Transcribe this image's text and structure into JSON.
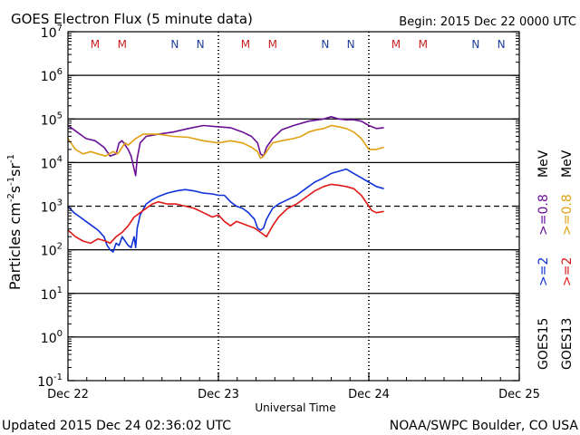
{
  "header": {
    "title": "GOES Electron Flux (5 minute data)",
    "begin": "Begin: 2015 Dec 22 0000 UTC"
  },
  "footer": {
    "updated": "Updated 2015 Dec 24 02:36:02 UTC",
    "credit": "NOAA/SWPC Boulder, CO USA"
  },
  "colors": {
    "goes15_2mev": "#1032d8",
    "goes13_2mev": "#e01818",
    "goes15_08mev": "#6a0f96",
    "goes13_08mev": "#e0a010",
    "marker_m": "#cc2222",
    "marker_n": "#1e3fa0"
  },
  "chart_data": {
    "type": "line",
    "title": "GOES Electron Flux (5 minute data)",
    "xlabel": "Universal Time",
    "ylabel_base": "Particles cm",
    "ylabel_units": [
      {
        "text": "Particles cm",
        "sup": "-2"
      },
      {
        "text": "s",
        "sup": "-1"
      },
      {
        "text": "sr",
        "sup": "-1"
      }
    ],
    "x_unit": "days since 2015 Dec 22 0000 UTC",
    "xlim": [
      0,
      3
    ],
    "ylim_log10": [
      -1,
      7
    ],
    "yscale": "log",
    "x_ticks": [
      {
        "x": 0,
        "label": "Dec 22"
      },
      {
        "x": 1,
        "label": "Dec 23"
      },
      {
        "x": 2,
        "label": "Dec 24"
      },
      {
        "x": 3,
        "label": "Dec 25"
      }
    ],
    "y_ticks": [
      {
        "exp": 7,
        "base": "10",
        "sup": "7"
      },
      {
        "exp": 6,
        "base": "10",
        "sup": "6"
      },
      {
        "exp": 5,
        "base": "10",
        "sup": "5"
      },
      {
        "exp": 4,
        "base": "10",
        "sup": "4"
      },
      {
        "exp": 3,
        "base": "10",
        "sup": "3"
      },
      {
        "exp": 2,
        "base": "10",
        "sup": "2"
      },
      {
        "exp": 1,
        "base": "10",
        "sup": "1"
      },
      {
        "exp": 0,
        "base": "10",
        "sup": "0"
      },
      {
        "exp": -1,
        "base": "10",
        "sup": "-1"
      }
    ],
    "solid_gridlines_exp": [
      6,
      5,
      4,
      2,
      1,
      0
    ],
    "threshold_exp": 3,
    "markers": [
      {
        "x": 0.18,
        "label": "M",
        "kind": "m"
      },
      {
        "x": 0.36,
        "label": "M",
        "kind": "m"
      },
      {
        "x": 0.71,
        "label": "N",
        "kind": "n"
      },
      {
        "x": 0.88,
        "label": "N",
        "kind": "n"
      },
      {
        "x": 1.18,
        "label": "M",
        "kind": "m"
      },
      {
        "x": 1.36,
        "label": "M",
        "kind": "m"
      },
      {
        "x": 1.71,
        "label": "N",
        "kind": "n"
      },
      {
        "x": 1.88,
        "label": "N",
        "kind": "n"
      },
      {
        "x": 2.18,
        "label": "M",
        "kind": "m"
      },
      {
        "x": 2.36,
        "label": "M",
        "kind": "m"
      },
      {
        "x": 2.71,
        "label": "N",
        "kind": "n"
      },
      {
        "x": 2.88,
        "label": "N",
        "kind": "n"
      }
    ],
    "legend": {
      "position": "right",
      "groups": [
        {
          "satellite": "GOES15",
          "entries": [
            {
              "label": ">=0.8 MeV",
              "color_key": "goes15_08mev"
            },
            {
              "label": ">=2 MeV",
              "color_key": "goes15_2mev"
            }
          ]
        },
        {
          "satellite": "GOES13",
          "entries": [
            {
              "label": ">=0.8 MeV",
              "color_key": "goes13_08mev"
            },
            {
              "label": ">=2",
              "color_key": "goes13_2mev"
            }
          ]
        }
      ],
      "legend_text": {
        "goes15_label": "GOES15",
        "goes13_label": "GOES13",
        "goes15_2": ">=2",
        "goes13_2": ">=2",
        "goes15_08": ">=0.8",
        "goes13_08": ">=0.8",
        "mev": "MeV"
      }
    },
    "series": [
      {
        "name": "GOES15 >=0.8 MeV",
        "color_key": "goes15_08mev",
        "x": [
          0.0,
          0.06,
          0.12,
          0.18,
          0.24,
          0.28,
          0.32,
          0.34,
          0.36,
          0.38,
          0.4,
          0.42,
          0.44,
          0.45,
          0.46,
          0.48,
          0.52,
          0.6,
          0.7,
          0.8,
          0.9,
          1.0,
          1.08,
          1.16,
          1.22,
          1.26,
          1.28,
          1.3,
          1.32,
          1.36,
          1.42,
          1.5,
          1.6,
          1.7,
          1.75,
          1.8,
          1.85,
          1.9,
          1.95,
          2.0,
          2.05,
          2.1
        ],
        "y_log10": [
          4.85,
          4.7,
          4.55,
          4.5,
          4.35,
          4.15,
          4.2,
          4.45,
          4.5,
          4.4,
          4.3,
          4.15,
          3.85,
          3.7,
          4.1,
          4.45,
          4.6,
          4.65,
          4.7,
          4.78,
          4.85,
          4.82,
          4.8,
          4.7,
          4.6,
          4.45,
          4.2,
          4.15,
          4.35,
          4.55,
          4.75,
          4.85,
          4.95,
          5.0,
          5.05,
          5.0,
          4.98,
          4.98,
          4.95,
          4.85,
          4.78,
          4.8
        ]
      },
      {
        "name": "GOES13 >=0.8 MeV",
        "color_key": "goes13_08mev",
        "x": [
          0.0,
          0.05,
          0.1,
          0.15,
          0.2,
          0.25,
          0.3,
          0.33,
          0.36,
          0.38,
          0.4,
          0.45,
          0.5,
          0.6,
          0.7,
          0.8,
          0.9,
          1.0,
          1.08,
          1.16,
          1.22,
          1.26,
          1.28,
          1.3,
          1.32,
          1.36,
          1.42,
          1.5,
          1.55,
          1.6,
          1.65,
          1.7,
          1.75,
          1.8,
          1.85,
          1.9,
          1.95,
          1.98,
          2.0,
          2.05,
          2.1
        ],
        "y_log10": [
          4.55,
          4.3,
          4.2,
          4.25,
          4.2,
          4.15,
          4.25,
          4.2,
          4.35,
          4.45,
          4.4,
          4.55,
          4.65,
          4.65,
          4.6,
          4.58,
          4.5,
          4.45,
          4.5,
          4.45,
          4.35,
          4.25,
          4.1,
          4.15,
          4.25,
          4.45,
          4.5,
          4.55,
          4.6,
          4.7,
          4.75,
          4.78,
          4.85,
          4.82,
          4.78,
          4.7,
          4.55,
          4.4,
          4.3,
          4.3,
          4.35
        ]
      },
      {
        "name": "GOES15 >=2 MeV",
        "color_key": "goes15_2mev",
        "x": [
          0.0,
          0.04,
          0.08,
          0.12,
          0.16,
          0.2,
          0.24,
          0.26,
          0.28,
          0.3,
          0.32,
          0.34,
          0.36,
          0.38,
          0.4,
          0.42,
          0.44,
          0.45,
          0.46,
          0.48,
          0.52,
          0.56,
          0.6,
          0.66,
          0.72,
          0.78,
          0.84,
          0.9,
          0.96,
          1.0,
          1.04,
          1.08,
          1.12,
          1.16,
          1.2,
          1.24,
          1.26,
          1.28,
          1.3,
          1.32,
          1.36,
          1.4,
          1.46,
          1.52,
          1.58,
          1.64,
          1.7,
          1.75,
          1.8,
          1.85,
          1.9,
          1.95,
          2.0,
          2.05,
          2.1
        ],
        "y_log10": [
          3.0,
          2.85,
          2.75,
          2.65,
          2.55,
          2.45,
          2.3,
          2.1,
          2.0,
          1.95,
          2.15,
          2.1,
          2.3,
          2.2,
          2.1,
          2.05,
          2.3,
          2.05,
          2.5,
          2.8,
          3.05,
          3.15,
          3.22,
          3.3,
          3.35,
          3.38,
          3.35,
          3.3,
          3.28,
          3.25,
          3.25,
          3.1,
          3.0,
          2.95,
          2.85,
          2.7,
          2.5,
          2.45,
          2.5,
          2.7,
          2.95,
          3.05,
          3.15,
          3.25,
          3.4,
          3.55,
          3.65,
          3.75,
          3.8,
          3.85,
          3.75,
          3.65,
          3.55,
          3.45,
          3.4
        ]
      },
      {
        "name": "GOES13 >=2 MeV",
        "color_key": "goes13_2mev",
        "x": [
          0.0,
          0.05,
          0.1,
          0.15,
          0.2,
          0.25,
          0.28,
          0.32,
          0.36,
          0.4,
          0.44,
          0.48,
          0.52,
          0.56,
          0.6,
          0.66,
          0.72,
          0.78,
          0.84,
          0.9,
          0.96,
          1.0,
          1.04,
          1.08,
          1.12,
          1.16,
          1.2,
          1.24,
          1.28,
          1.32,
          1.36,
          1.4,
          1.46,
          1.52,
          1.58,
          1.64,
          1.7,
          1.75,
          1.8,
          1.85,
          1.9,
          1.95,
          2.0,
          2.02,
          2.05,
          2.1
        ],
        "y_log10": [
          2.45,
          2.3,
          2.2,
          2.15,
          2.25,
          2.2,
          2.15,
          2.3,
          2.4,
          2.55,
          2.75,
          2.85,
          2.95,
          3.05,
          3.1,
          3.05,
          3.05,
          3.0,
          2.95,
          2.85,
          2.75,
          2.8,
          2.65,
          2.55,
          2.65,
          2.6,
          2.55,
          2.5,
          2.4,
          2.3,
          2.55,
          2.75,
          2.95,
          3.05,
          3.2,
          3.35,
          3.45,
          3.5,
          3.48,
          3.45,
          3.4,
          3.25,
          3.0,
          2.9,
          2.85,
          2.88
        ]
      }
    ]
  }
}
